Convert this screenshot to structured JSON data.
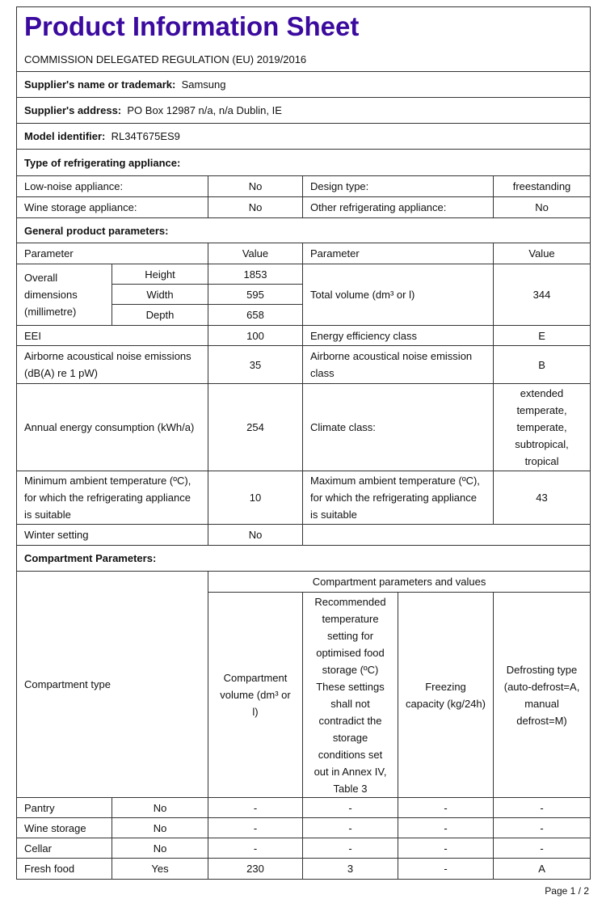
{
  "header": {
    "title": "Product Information Sheet",
    "regulation": "COMMISSION DELEGATED REGULATION (EU) 2019/2016"
  },
  "supplier": {
    "name_label": "Supplier's name or trademark:",
    "name": "Samsung",
    "address_label": "Supplier's address:",
    "address": "PO Box 12987 n/a, n/a Dublin, IE",
    "model_label": "Model identifier:",
    "model": "RL34T675ES9"
  },
  "type": {
    "heading": "Type of refrigerating appliance:",
    "low_noise_label": "Low-noise appliance:",
    "low_noise": "No",
    "design_label": "Design type:",
    "design": "freestanding",
    "wine_label": "Wine storage appliance:",
    "wine": "No",
    "other_label": "Other refrigerating appliance:",
    "other": "No"
  },
  "general": {
    "heading": "General product parameters:",
    "param_header": "Parameter",
    "value_header": "Value",
    "dimensions_label": "Overall dimensions (millimetre)",
    "height_label": "Height",
    "height": "1853",
    "width_label": "Width",
    "width": "595",
    "depth_label": "Depth",
    "depth": "658",
    "volume_label": "Total volume (dm³ or l)",
    "volume": "344",
    "eei_label": "EEI",
    "eei": "100",
    "eec_label": "Energy efficiency class",
    "eec": "E",
    "noise_label": "Airborne acoustical noise emissions (dB(A) re 1 pW)",
    "noise": "35",
    "noise_class_label": "Airborne acoustical noise emission class",
    "noise_class": "B",
    "energy_label": "Annual energy consumption (kWh/a)",
    "energy": "254",
    "climate_label": "Climate class:",
    "climate": "extended temperate, temperate, subtropical, tropical",
    "min_temp_label": "Minimum ambient temperature (ºC), for which the refrigerating appliance is suitable",
    "min_temp": "10",
    "max_temp_label": "Maximum ambient temperature (ºC), for which the refrigerating appliance is suitable",
    "max_temp": "43",
    "winter_label": "Winter setting",
    "winter": "No"
  },
  "compartments": {
    "heading": "Compartment Parameters:",
    "type_header": "Compartment type",
    "group_header": "Compartment parameters and values",
    "volume_header": "Compartment volume (dm³ or l)",
    "temp_header": "Recommended temperature setting for optimised food storage (ºC) These settings shall not contradict the storage conditions set out in Annex IV, Table 3",
    "freezing_header": "Freezing capacity (kg/24h)",
    "defrost_header": "Defrosting type (auto-defrost=A, manual defrost=M)",
    "rows": [
      {
        "name": "Pantry",
        "present": "No",
        "volume": "-",
        "temp": "-",
        "freezing": "-",
        "defrost": "-"
      },
      {
        "name": "Wine storage",
        "present": "No",
        "volume": "-",
        "temp": "-",
        "freezing": "-",
        "defrost": "-"
      },
      {
        "name": "Cellar",
        "present": "No",
        "volume": "-",
        "temp": "-",
        "freezing": "-",
        "defrost": "-"
      },
      {
        "name": "Fresh food",
        "present": "Yes",
        "volume": "230",
        "temp": "3",
        "freezing": "-",
        "defrost": "A"
      }
    ]
  },
  "footer": {
    "page": "Page 1 / 2"
  },
  "colors": {
    "title": "#3b0a9e"
  }
}
